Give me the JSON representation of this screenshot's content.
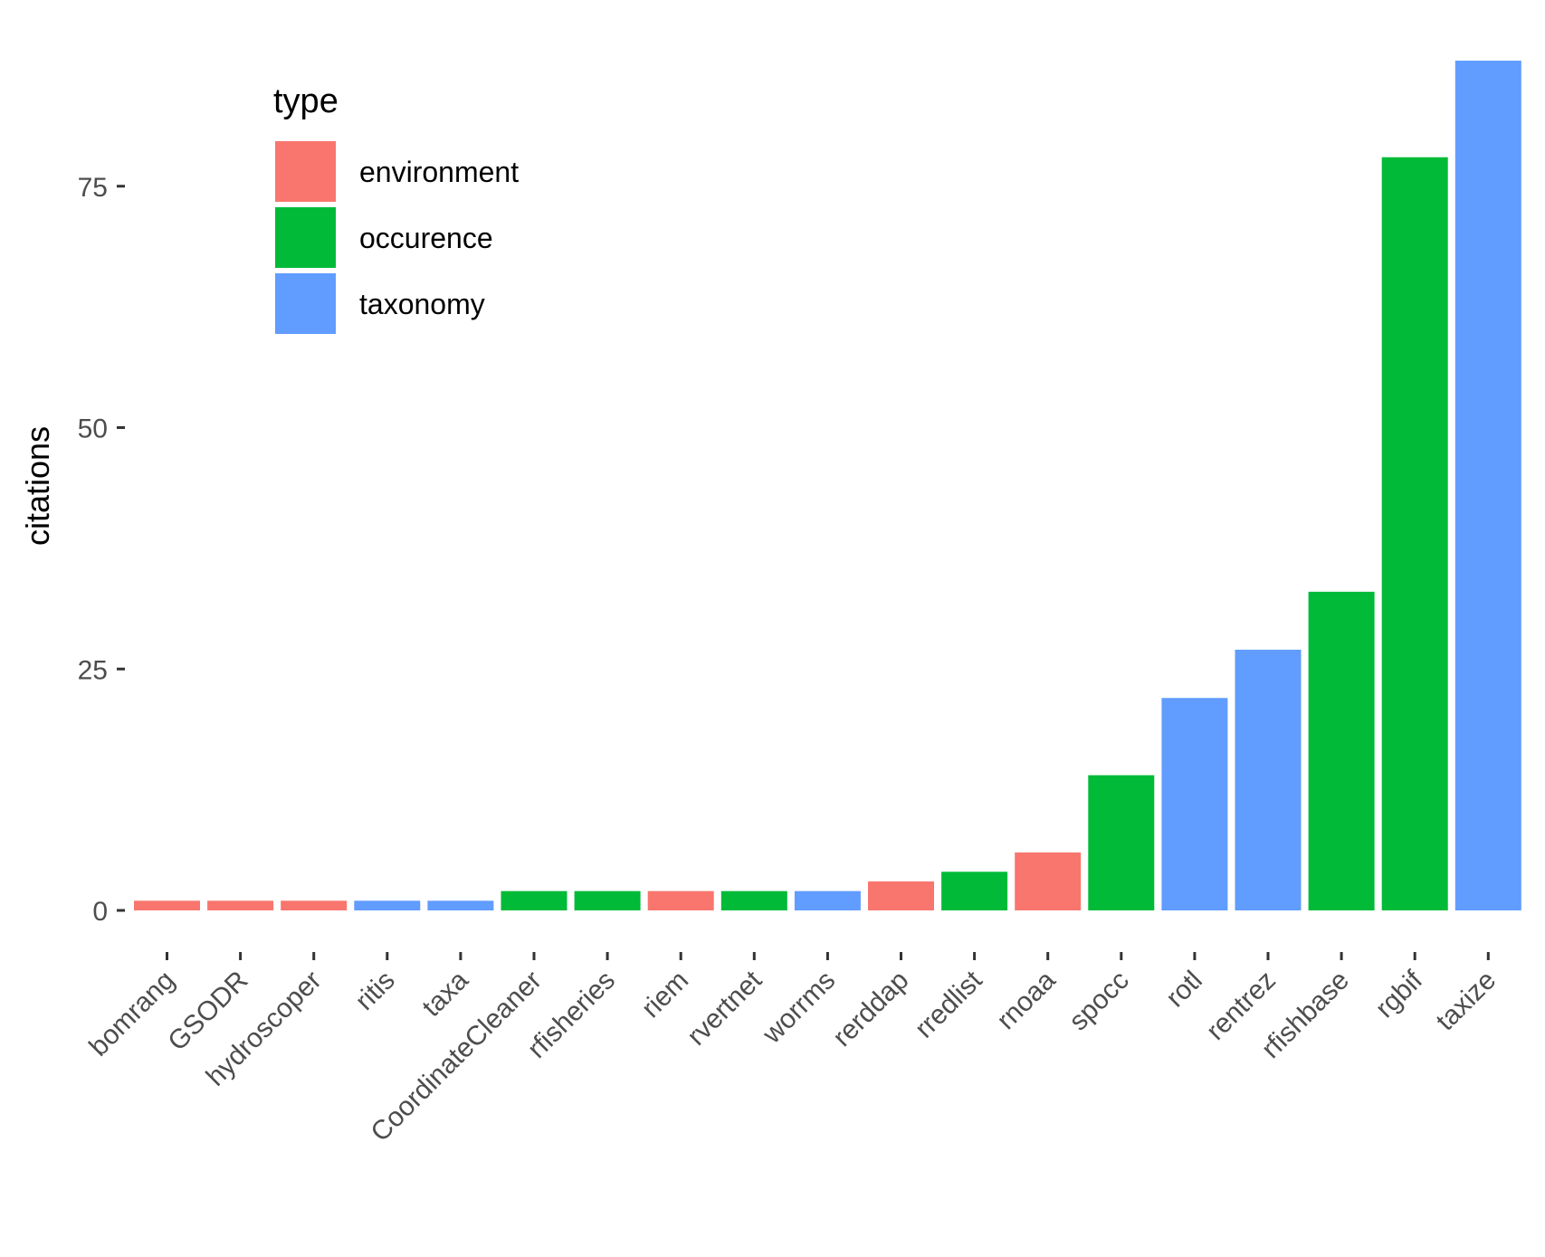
{
  "chart_data": {
    "type": "bar",
    "title": "",
    "xlabel": "",
    "ylabel": "citations",
    "ylim": [
      0,
      88
    ],
    "yticks": [
      0,
      25,
      50,
      75
    ],
    "grid": false,
    "legend": {
      "title": "type",
      "placement": "top-left",
      "entries": [
        {
          "label": "environment",
          "color": "#F8766D"
        },
        {
          "label": "occurence",
          "color": "#00BA38"
        },
        {
          "label": "taxonomy",
          "color": "#619CFF"
        }
      ]
    },
    "categories": [
      "bomrang",
      "GSODR",
      "hydroscoper",
      "ritis",
      "taxa",
      "CoordinateCleaner",
      "rfisheries",
      "riem",
      "rvertnet",
      "worrms",
      "rerddap",
      "rredlist",
      "rnoaa",
      "spocc",
      "rotl",
      "rentrez",
      "rfishbase",
      "rgbif",
      "taxize"
    ],
    "values": [
      1,
      1,
      1,
      1,
      1,
      2,
      2,
      2,
      2,
      2,
      3,
      4,
      6,
      14,
      22,
      27,
      33,
      78,
      88
    ],
    "types": [
      "environment",
      "environment",
      "environment",
      "taxonomy",
      "taxonomy",
      "occurence",
      "occurence",
      "environment",
      "occurence",
      "taxonomy",
      "environment",
      "occurence",
      "environment",
      "occurence",
      "taxonomy",
      "taxonomy",
      "occurence",
      "occurence",
      "taxonomy"
    ]
  }
}
